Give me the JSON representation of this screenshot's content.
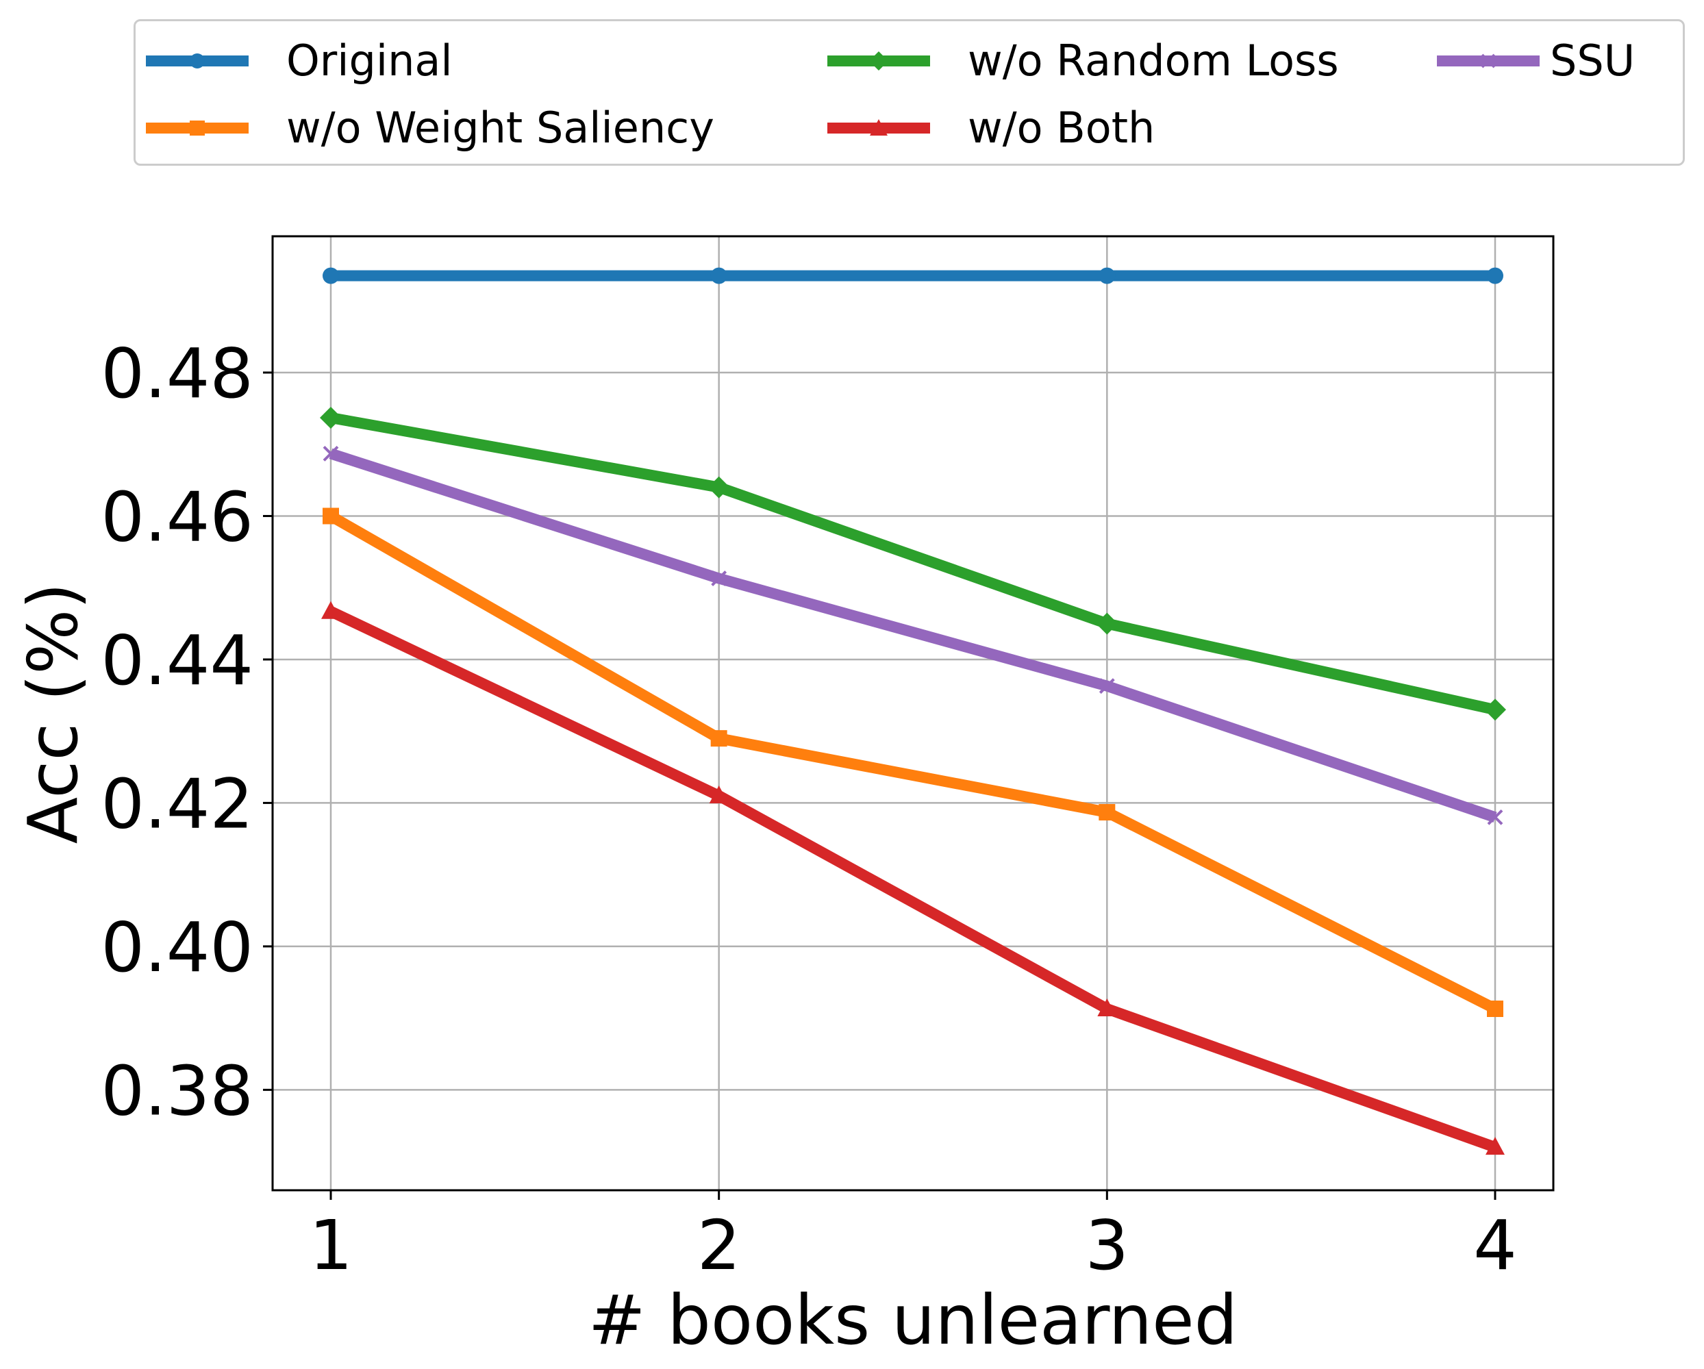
{
  "chart_data": {
    "type": "line",
    "xlabel": "# books unlearned",
    "ylabel": "Acc (%)",
    "x": [
      1,
      2,
      3,
      4
    ],
    "x_ticks": [
      "1",
      "2",
      "3",
      "4"
    ],
    "xlim": [
      0.85,
      4.15
    ],
    "ylim": [
      0.366,
      0.499
    ],
    "y_ticks": [
      "0.38",
      "0.40",
      "0.42",
      "0.44",
      "0.46",
      "0.48"
    ],
    "y_tick_values": [
      0.38,
      0.4,
      0.42,
      0.44,
      0.46,
      0.48
    ],
    "grid": true,
    "legend_position": "top",
    "series": [
      {
        "name": "Original",
        "color": "#1f77b4",
        "marker": "circle",
        "values": [
          0.4935,
          0.4935,
          0.4935,
          0.4935
        ]
      },
      {
        "name": "w/o Weight Saliency",
        "color": "#ff7f0e",
        "marker": "square",
        "values": [
          0.46,
          0.429,
          0.4187,
          0.3913
        ]
      },
      {
        "name": "w/o Random Loss",
        "color": "#2ca02c",
        "marker": "diamond",
        "values": [
          0.4737,
          0.464,
          0.445,
          0.433
        ]
      },
      {
        "name": "w/o Both",
        "color": "#d62728",
        "marker": "triangle",
        "values": [
          0.4467,
          0.421,
          0.3913,
          0.372
        ]
      },
      {
        "name": "SSU",
        "color": "#9467bd",
        "marker": "x",
        "values": [
          0.4687,
          0.4513,
          0.4363,
          0.418
        ]
      }
    ]
  }
}
